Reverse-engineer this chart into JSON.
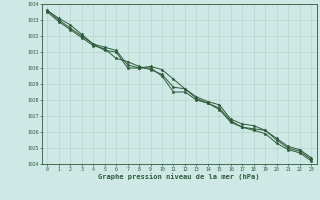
{
  "x": [
    0,
    1,
    2,
    3,
    4,
    5,
    6,
    7,
    8,
    9,
    10,
    11,
    12,
    13,
    14,
    15,
    16,
    17,
    18,
    19,
    20,
    21,
    22,
    23
  ],
  "line1": [
    1033.6,
    1033.1,
    1032.7,
    1032.1,
    1031.5,
    1031.1,
    1031.0,
    1030.0,
    1030.0,
    1030.0,
    1029.5,
    1028.5,
    1028.5,
    1028.0,
    1027.8,
    1027.5,
    1026.7,
    1026.3,
    1026.2,
    1026.1,
    1025.5,
    1025.0,
    1024.8,
    1024.3
  ],
  "line2": [
    1033.6,
    1033.0,
    1032.5,
    1032.0,
    1031.5,
    1031.3,
    1031.1,
    1030.2,
    1030.0,
    1030.1,
    1029.9,
    1029.3,
    1028.7,
    1028.2,
    1027.9,
    1027.7,
    1026.8,
    1026.5,
    1026.4,
    1026.1,
    1025.6,
    1025.1,
    1024.9,
    1024.4
  ],
  "line3": [
    1033.5,
    1032.9,
    1032.4,
    1031.9,
    1031.4,
    1031.2,
    1030.6,
    1030.4,
    1030.1,
    1029.9,
    1029.6,
    1028.8,
    1028.7,
    1028.1,
    1027.8,
    1027.4,
    1026.6,
    1026.3,
    1026.1,
    1025.9,
    1025.3,
    1024.9,
    1024.7,
    1024.2
  ],
  "background_color": "#cee9e5",
  "grid_color": "#b0cfc8",
  "line_color": "#2d5a3a",
  "marker": "*",
  "xlabel": "Graphe pression niveau de la mer (hPa)",
  "ylim": [
    1024,
    1034
  ],
  "xlim": [
    -0.5,
    23.5
  ],
  "yticks": [
    1024,
    1025,
    1026,
    1027,
    1028,
    1029,
    1030,
    1031,
    1032,
    1033,
    1034
  ],
  "xticks": [
    0,
    1,
    2,
    3,
    4,
    5,
    6,
    7,
    8,
    9,
    10,
    11,
    12,
    13,
    14,
    15,
    16,
    17,
    18,
    19,
    20,
    21,
    22,
    23
  ]
}
